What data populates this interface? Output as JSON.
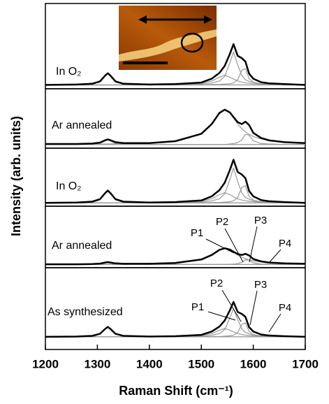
{
  "chart_data": {
    "type": "line",
    "x_label": "Raman Shift (cm⁻¹)",
    "y_label": "Intensity (arb. units)",
    "xlim": [
      1200,
      1700
    ],
    "xticks": [
      1200,
      1300,
      1400,
      1500,
      1600,
      1700
    ],
    "x": [
      1200,
      1260,
      1290,
      1305,
      1315,
      1320,
      1325,
      1335,
      1350,
      1400,
      1450,
      1500,
      1520,
      1535,
      1545,
      1555,
      1562,
      1570,
      1578,
      1585,
      1592,
      1600,
      1615,
      1630,
      1660,
      1700
    ],
    "panels": [
      {
        "label": "In O₂",
        "ylim": [
          -0.1,
          2.1
        ],
        "series": [
          {
            "color": "#000000",
            "values": [
              0,
              0.01,
              0.03,
              0.09,
              0.24,
              0.3,
              0.24,
              0.09,
              0.03,
              0.01,
              0.02,
              0.06,
              0.16,
              0.31,
              0.49,
              0.8,
              1.05,
              0.75,
              0.69,
              0.6,
              0.29,
              0.16,
              0.07,
              0.04,
              0.02,
              0
            ]
          },
          {
            "color": "#999999",
            "values": [
              0,
              0.01,
              0.03,
              0.09,
              0.24,
              0.3,
              0.24,
              0.09,
              0.03,
              0,
              0,
              0,
              0,
              0,
              0,
              0,
              0,
              0,
              0,
              0,
              0,
              0,
              0,
              0,
              0,
              0
            ]
          },
          {
            "color": "#999999",
            "values": [
              0,
              0,
              0,
              0,
              0,
              0,
              0,
              0,
              0,
              0.01,
              0.01,
              0.04,
              0.1,
              0.2,
              0.25,
              0.2,
              0.15,
              0.1,
              0.07,
              0.05,
              0.04,
              0.03,
              0.02,
              0.01,
              0.01,
              0
            ]
          },
          {
            "color": "#999999",
            "values": [
              0,
              0,
              0,
              0,
              0,
              0,
              0,
              0,
              0,
              0,
              0.01,
              0.02,
              0.05,
              0.1,
              0.22,
              0.57,
              0.85,
              0.52,
              0.24,
              0.13,
              0.09,
              0.06,
              0.03,
              0.02,
              0.01,
              0
            ]
          },
          {
            "color": "#999999",
            "values": [
              0,
              0,
              0,
              0,
              0,
              0,
              0,
              0,
              0,
              0,
              0,
              0,
              0.01,
              0.01,
              0.02,
              0.03,
              0.05,
              0.13,
              0.38,
              0.42,
              0.16,
              0.07,
              0.02,
              0.01,
              0,
              0
            ]
          }
        ]
      },
      {
        "label": "Ar annealed",
        "ylim": [
          -0.08,
          1.2
        ],
        "series": [
          {
            "color": "#000000",
            "values": [
              0.01,
              0.01,
              0.02,
              0.04,
              0.09,
              0.11,
              0.09,
              0.05,
              0.03,
              0.03,
              0.07,
              0.23,
              0.44,
              0.68,
              0.75,
              0.69,
              0.59,
              0.48,
              0.44,
              0.49,
              0.42,
              0.25,
              0.14,
              0.09,
              0.05,
              0.03
            ]
          },
          {
            "color": "#999999",
            "values": [
              0.01,
              0.01,
              0.01,
              0.01,
              0.01,
              0.01,
              0.01,
              0.02,
              0.02,
              0.03,
              0.07,
              0.23,
              0.44,
              0.68,
              0.75,
              0.68,
              0.57,
              0.44,
              0.34,
              0.27,
              0.22,
              0.17,
              0.12,
              0.08,
              0.05,
              0.03
            ]
          },
          {
            "color": "#999999",
            "values": [
              0,
              0,
              0,
              0,
              0,
              0,
              0,
              0,
              0,
              0,
              0,
              0,
              0,
              0,
              0,
              0.01,
              0.02,
              0.04,
              0.1,
              0.22,
              0.2,
              0.08,
              0.02,
              0.01,
              0,
              0
            ]
          },
          {
            "color": "#999999",
            "values": [
              0,
              0,
              0.01,
              0.03,
              0.08,
              0.1,
              0.08,
              0.03,
              0.01,
              0,
              0,
              0,
              0,
              0,
              0,
              0,
              0,
              0,
              0,
              0,
              0,
              0,
              0,
              0,
              0,
              0
            ]
          }
        ]
      },
      {
        "label": "In O₂",
        "ylim": [
          -0.08,
          1.33
        ],
        "series": [
          {
            "color": "#000000",
            "values": [
              0,
              0.01,
              0.03,
              0.09,
              0.24,
              0.3,
              0.24,
              0.09,
              0.03,
              0.01,
              0.02,
              0.06,
              0.16,
              0.31,
              0.49,
              0.8,
              1.05,
              0.75,
              0.69,
              0.6,
              0.29,
              0.16,
              0.07,
              0.04,
              0.02,
              0
            ]
          },
          {
            "color": "#999999",
            "values": [
              0,
              0.01,
              0.03,
              0.09,
              0.24,
              0.3,
              0.24,
              0.09,
              0.03,
              0,
              0,
              0,
              0,
              0,
              0,
              0,
              0,
              0,
              0,
              0,
              0,
              0,
              0,
              0,
              0,
              0
            ]
          },
          {
            "color": "#999999",
            "values": [
              0,
              0,
              0,
              0,
              0,
              0,
              0,
              0,
              0,
              0.01,
              0.01,
              0.04,
              0.1,
              0.2,
              0.25,
              0.2,
              0.15,
              0.1,
              0.07,
              0.05,
              0.04,
              0.03,
              0.02,
              0.01,
              0.01,
              0
            ]
          },
          {
            "color": "#999999",
            "values": [
              0,
              0,
              0,
              0,
              0,
              0,
              0,
              0,
              0,
              0,
              0.01,
              0.02,
              0.05,
              0.1,
              0.22,
              0.57,
              0.85,
              0.52,
              0.24,
              0.13,
              0.09,
              0.06,
              0.03,
              0.02,
              0.01,
              0
            ]
          },
          {
            "color": "#999999",
            "values": [
              0,
              0,
              0,
              0,
              0,
              0,
              0,
              0,
              0,
              0,
              0,
              0,
              0.01,
              0.01,
              0.02,
              0.03,
              0.05,
              0.13,
              0.38,
              0.42,
              0.16,
              0.07,
              0.02,
              0.01,
              0,
              0
            ]
          }
        ]
      },
      {
        "label": "Ar annealed",
        "ylim": [
          -0.15,
          2.7
        ],
        "annotations": [
          "P1",
          "P2",
          "P3",
          "P4"
        ],
        "series": [
          {
            "color": "#000000",
            "values": [
              0.01,
              0.01,
              0.02,
              0.04,
              0.09,
              0.11,
              0.09,
              0.05,
              0.03,
              0.03,
              0.07,
              0.23,
              0.44,
              0.68,
              0.75,
              0.69,
              0.59,
              0.48,
              0.44,
              0.49,
              0.42,
              0.25,
              0.14,
              0.09,
              0.05,
              0.03
            ]
          },
          {
            "color": "#999999",
            "values": [
              0.01,
              0.01,
              0.01,
              0.01,
              0.01,
              0.01,
              0.01,
              0.02,
              0.02,
              0.03,
              0.07,
              0.23,
              0.44,
              0.68,
              0.75,
              0.68,
              0.57,
              0.44,
              0.34,
              0.27,
              0.22,
              0.17,
              0.12,
              0.08,
              0.05,
              0.03
            ]
          },
          {
            "color": "#999999",
            "values": [
              0,
              0,
              0,
              0,
              0,
              0,
              0,
              0,
              0,
              0,
              0,
              0,
              0,
              0,
              0,
              0.01,
              0.02,
              0.04,
              0.1,
              0.22,
              0.2,
              0.08,
              0.02,
              0.01,
              0,
              0
            ]
          },
          {
            "color": "#999999",
            "values": [
              0,
              0,
              0.01,
              0.03,
              0.08,
              0.1,
              0.08,
              0.03,
              0.01,
              0,
              0,
              0,
              0,
              0,
              0,
              0,
              0,
              0,
              0,
              0,
              0,
              0,
              0,
              0,
              0,
              0
            ]
          }
        ]
      },
      {
        "label": "As synthesized",
        "ylim": [
          -0.38,
          2.08
        ],
        "annotations": [
          "P1",
          "P2",
          "P3",
          "P4"
        ],
        "series": [
          {
            "color": "#000000",
            "values": [
              0,
              0.01,
              0.03,
              0.09,
              0.24,
              0.3,
              0.24,
              0.09,
              0.03,
              0.01,
              0.02,
              0.06,
              0.16,
              0.31,
              0.49,
              0.8,
              1.05,
              0.75,
              0.69,
              0.6,
              0.29,
              0.16,
              0.07,
              0.04,
              0.02,
              0
            ]
          },
          {
            "color": "#999999",
            "values": [
              0,
              0.01,
              0.03,
              0.09,
              0.24,
              0.3,
              0.24,
              0.09,
              0.03,
              0,
              0,
              0,
              0,
              0,
              0,
              0,
              0,
              0,
              0,
              0,
              0,
              0,
              0,
              0,
              0,
              0
            ]
          },
          {
            "color": "#999999",
            "values": [
              0,
              0,
              0,
              0,
              0,
              0,
              0,
              0,
              0,
              0.01,
              0.01,
              0.04,
              0.1,
              0.2,
              0.25,
              0.2,
              0.15,
              0.1,
              0.07,
              0.05,
              0.04,
              0.03,
              0.02,
              0.01,
              0.01,
              0
            ]
          },
          {
            "color": "#999999",
            "values": [
              0,
              0,
              0,
              0,
              0,
              0,
              0,
              0,
              0,
              0,
              0.01,
              0.02,
              0.05,
              0.1,
              0.22,
              0.57,
              0.85,
              0.52,
              0.24,
              0.13,
              0.09,
              0.06,
              0.03,
              0.02,
              0.01,
              0
            ]
          },
          {
            "color": "#999999",
            "values": [
              0,
              0,
              0,
              0,
              0,
              0,
              0,
              0,
              0,
              0,
              0,
              0,
              0.01,
              0.01,
              0.02,
              0.03,
              0.05,
              0.13,
              0.38,
              0.42,
              0.16,
              0.07,
              0.02,
              0.01,
              0,
              0
            ]
          }
        ]
      }
    ]
  }
}
